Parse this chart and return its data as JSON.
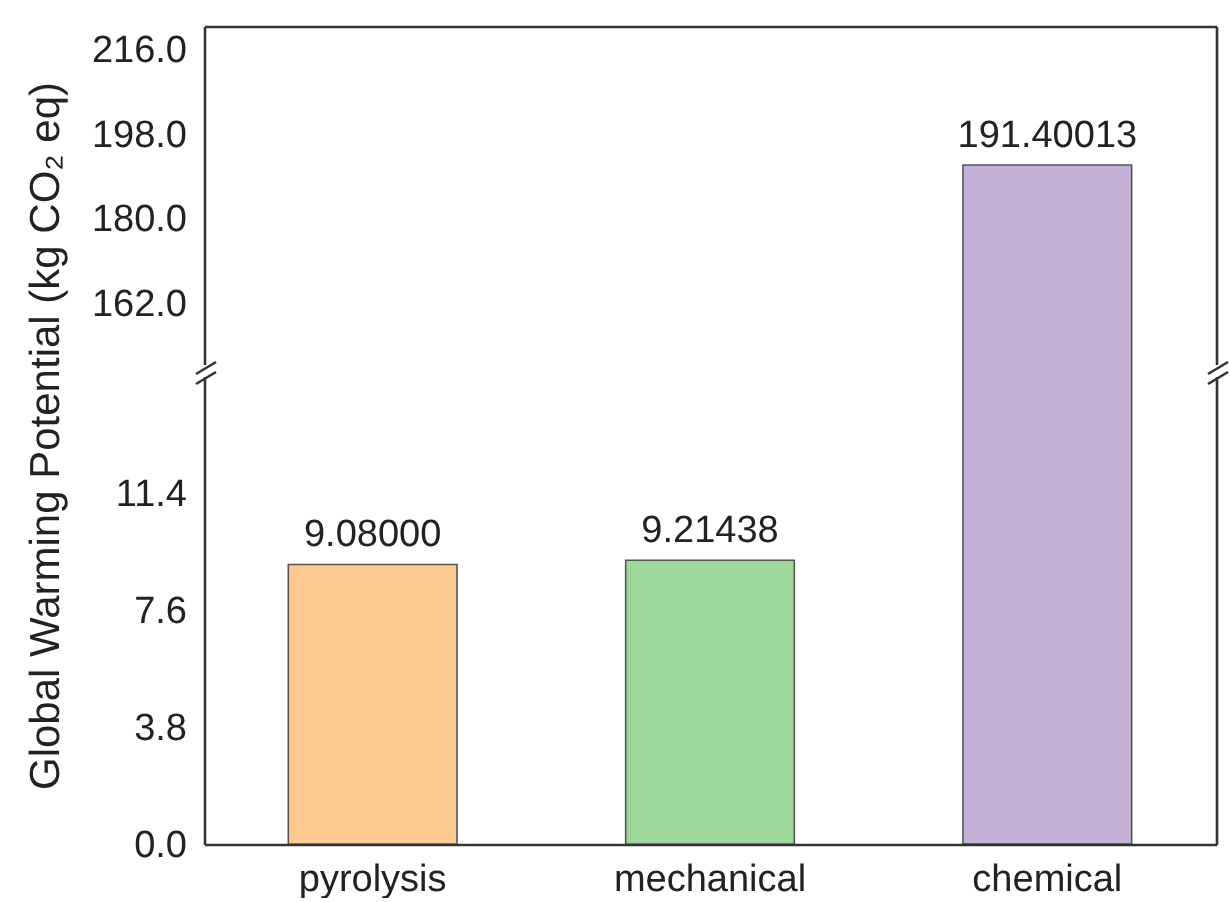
{
  "chart_data": [
    {
      "type": "bar",
      "categories": [
        null,
        null,
        null
      ],
      "values": [
        null,
        null,
        191.40013
      ],
      "colors": [
        null,
        null,
        "#c5b3d7"
      ],
      "value_labels": [
        null,
        null,
        "191.40013"
      ],
      "ylim": [
        149,
        221
      ],
      "yticks": [
        {
          "value": 162,
          "label": "162.0"
        },
        {
          "value": 180,
          "label": "180.0"
        },
        {
          "value": 198,
          "label": "198.0"
        },
        {
          "value": 216,
          "label": "216.0"
        }
      ],
      "tick_labels": "y"
    },
    {
      "type": "bar",
      "categories": [
        "pyrolysis",
        "mechanical",
        "chemical"
      ],
      "values": [
        9.08,
        9.21438,
        null
      ],
      "colors": [
        "#fdcb91",
        "#9dd79a",
        null
      ],
      "value_labels": [
        "9.08000",
        "9.21438",
        null
      ],
      "ylim": [
        0,
        15.2
      ],
      "yticks": [
        {
          "value": 0,
          "label": "0.0"
        },
        3.8,
        7.6,
        11.4
      ],
      "ylabel": "Global Warming Potential (kg CO₂ eq)"
    }
  ]
}
